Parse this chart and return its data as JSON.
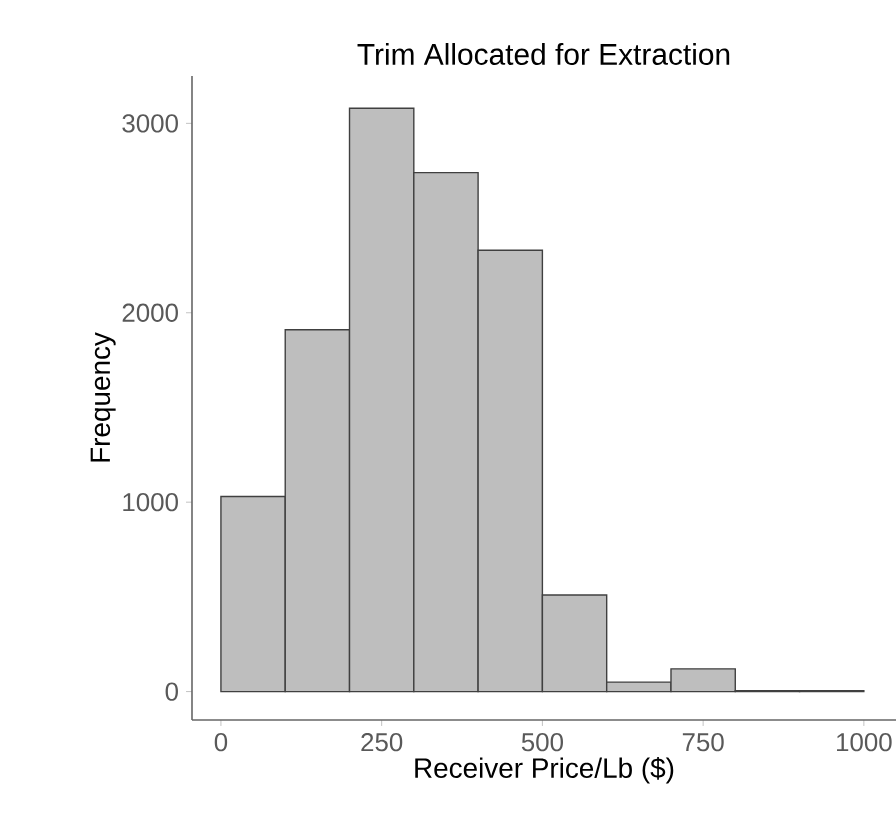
{
  "chart_data": {
    "type": "histogram",
    "title": "Trim Allocated for Extraction",
    "xlabel": "Receiver Price/Lb ($)",
    "ylabel": "Frequency",
    "bins": [
      0,
      100,
      200,
      300,
      400,
      500,
      600,
      700,
      800,
      900,
      1000
    ],
    "values": [
      1030,
      1910,
      3080,
      2740,
      2330,
      510,
      50,
      120,
      5,
      5
    ],
    "color": "#bebebe",
    "xlim": [
      -45,
      1050
    ],
    "xticks": [
      0,
      250,
      500,
      750,
      1000
    ],
    "ylim": [
      -150,
      3250
    ],
    "yticks": [
      0,
      1000,
      2000,
      3000
    ],
    "grid": false
  }
}
